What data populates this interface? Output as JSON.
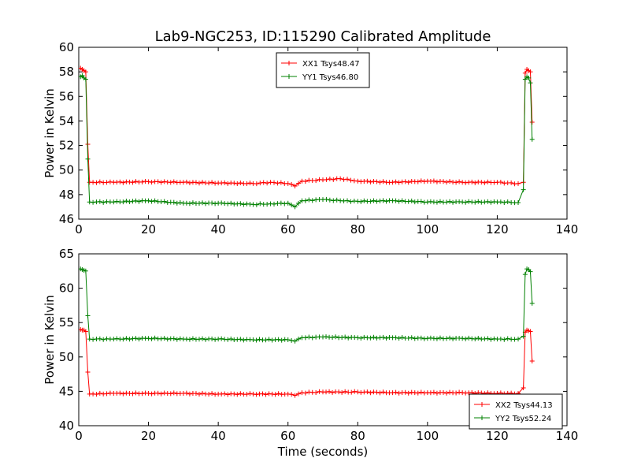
{
  "chart_data": [
    {
      "type": "line",
      "title": "Lab9-NGC253, ID:115290 Calibrated Amplitude",
      "xlabel": "",
      "ylabel": "Power in Kelvin",
      "xlim": [
        0,
        140
      ],
      "ylim": [
        46,
        60
      ],
      "xticks": [
        "0",
        "20",
        "40",
        "60",
        "80",
        "100",
        "120",
        "140"
      ],
      "yticks": [
        "46",
        "48",
        "50",
        "52",
        "54",
        "56",
        "58",
        "60"
      ],
      "legend_position": "upper-center",
      "series": [
        {
          "name": "XX1 Tsys48.47",
          "color": "#ff0000",
          "marker": "plus",
          "points": [
            [
              0.5,
              58.3
            ],
            [
              1.0,
              58.2
            ],
            [
              1.5,
              58.1
            ],
            [
              2.0,
              58.0
            ],
            [
              2.6,
              52.1
            ],
            [
              3.1,
              49.0
            ],
            [
              10,
              49.0
            ],
            [
              20,
              49.05
            ],
            [
              30,
              49.0
            ],
            [
              40,
              48.95
            ],
            [
              50,
              48.9
            ],
            [
              55,
              49.0
            ],
            [
              60,
              48.9
            ],
            [
              62,
              48.7
            ],
            [
              64,
              49.1
            ],
            [
              70,
              49.2
            ],
            [
              75,
              49.3
            ],
            [
              80,
              49.1
            ],
            [
              90,
              49.0
            ],
            [
              100,
              49.1
            ],
            [
              110,
              49.0
            ],
            [
              120,
              49.0
            ],
            [
              126,
              48.9
            ],
            [
              127.5,
              49.0
            ],
            [
              128,
              57.9
            ],
            [
              128.5,
              58.2
            ],
            [
              129,
              58.1
            ],
            [
              129.5,
              58.0
            ],
            [
              130,
              53.9
            ]
          ]
        },
        {
          "name": "YY1 Tsys46.80",
          "color": "#008000",
          "marker": "plus",
          "points": [
            [
              0.5,
              57.6
            ],
            [
              1.0,
              57.7
            ],
            [
              1.5,
              57.5
            ],
            [
              2.0,
              57.4
            ],
            [
              2.6,
              50.9
            ],
            [
              3.1,
              47.4
            ],
            [
              10,
              47.4
            ],
            [
              20,
              47.5
            ],
            [
              30,
              47.3
            ],
            [
              40,
              47.3
            ],
            [
              50,
              47.2
            ],
            [
              55,
              47.25
            ],
            [
              60,
              47.3
            ],
            [
              62,
              47.0
            ],
            [
              64,
              47.5
            ],
            [
              70,
              47.6
            ],
            [
              75,
              47.5
            ],
            [
              80,
              47.45
            ],
            [
              90,
              47.5
            ],
            [
              100,
              47.4
            ],
            [
              110,
              47.4
            ],
            [
              120,
              47.4
            ],
            [
              126,
              47.35
            ],
            [
              127.5,
              48.4
            ],
            [
              128,
              57.4
            ],
            [
              128.5,
              57.6
            ],
            [
              129,
              57.5
            ],
            [
              129.5,
              57.1
            ],
            [
              130,
              52.5
            ]
          ]
        }
      ]
    },
    {
      "type": "line",
      "title": "",
      "xlabel": "Time (seconds)",
      "ylabel": "Power in Kelvin",
      "xlim": [
        0,
        140
      ],
      "ylim": [
        40,
        65
      ],
      "xticks": [
        "0",
        "20",
        "40",
        "60",
        "80",
        "100",
        "120",
        "140"
      ],
      "yticks": [
        "40",
        "45",
        "50",
        "55",
        "60",
        "65"
      ],
      "legend_position": "lower-right",
      "series": [
        {
          "name": "XX2 Tsys44.13",
          "color": "#ff0000",
          "marker": "plus",
          "points": [
            [
              0.5,
              54.0
            ],
            [
              1.0,
              53.9
            ],
            [
              1.5,
              53.9
            ],
            [
              2.0,
              53.7
            ],
            [
              2.6,
              47.8
            ],
            [
              3.1,
              44.6
            ],
            [
              10,
              44.7
            ],
            [
              20,
              44.7
            ],
            [
              30,
              44.7
            ],
            [
              40,
              44.6
            ],
            [
              50,
              44.6
            ],
            [
              60,
              44.6
            ],
            [
              62,
              44.4
            ],
            [
              64,
              44.8
            ],
            [
              70,
              44.9
            ],
            [
              80,
              44.9
            ],
            [
              90,
              44.8
            ],
            [
              100,
              44.8
            ],
            [
              110,
              44.8
            ],
            [
              120,
              44.7
            ],
            [
              126,
              44.7
            ],
            [
              127.5,
              45.5
            ],
            [
              128,
              53.6
            ],
            [
              128.5,
              53.9
            ],
            [
              129,
              53.8
            ],
            [
              129.5,
              53.7
            ],
            [
              130,
              49.4
            ]
          ]
        },
        {
          "name": "YY2 Tsys52.24",
          "color": "#008000",
          "marker": "plus",
          "points": [
            [
              0.5,
              62.8
            ],
            [
              1.0,
              62.7
            ],
            [
              1.5,
              62.6
            ],
            [
              2.0,
              62.5
            ],
            [
              2.6,
              56.0
            ],
            [
              3.1,
              52.6
            ],
            [
              10,
              52.6
            ],
            [
              20,
              52.7
            ],
            [
              30,
              52.6
            ],
            [
              40,
              52.6
            ],
            [
              50,
              52.5
            ],
            [
              60,
              52.5
            ],
            [
              62,
              52.3
            ],
            [
              64,
              52.8
            ],
            [
              70,
              52.9
            ],
            [
              80,
              52.8
            ],
            [
              90,
              52.8
            ],
            [
              100,
              52.7
            ],
            [
              110,
              52.7
            ],
            [
              120,
              52.6
            ],
            [
              126,
              52.6
            ],
            [
              127.5,
              53.0
            ],
            [
              128,
              62.0
            ],
            [
              128.5,
              62.8
            ],
            [
              129,
              62.7
            ],
            [
              129.5,
              62.4
            ],
            [
              130,
              57.8
            ]
          ]
        }
      ]
    }
  ]
}
